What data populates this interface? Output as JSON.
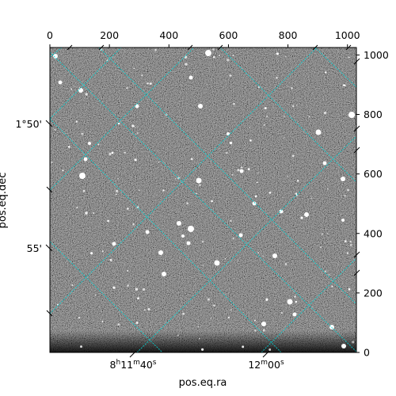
{
  "figure": {
    "xlabel": "pos.eq.ra",
    "ylabel": "pos.eq.dec",
    "pixel_x_ticks": [
      "0",
      "200",
      "400",
      "600",
      "800",
      "1000"
    ],
    "pixel_y_ticks": [
      "0",
      "200",
      "400",
      "600",
      "800",
      "1000"
    ],
    "ra_ticks": [
      {
        "h": "8",
        "m": "11",
        "s": "40"
      },
      {
        "m": "12",
        "s": "00"
      }
    ],
    "dec_ticks": [
      "1°50'",
      "55'"
    ],
    "grid_color": "#00d5d5",
    "image_style": "grayscale star field with a dense noise background and scattered bright stars"
  }
}
